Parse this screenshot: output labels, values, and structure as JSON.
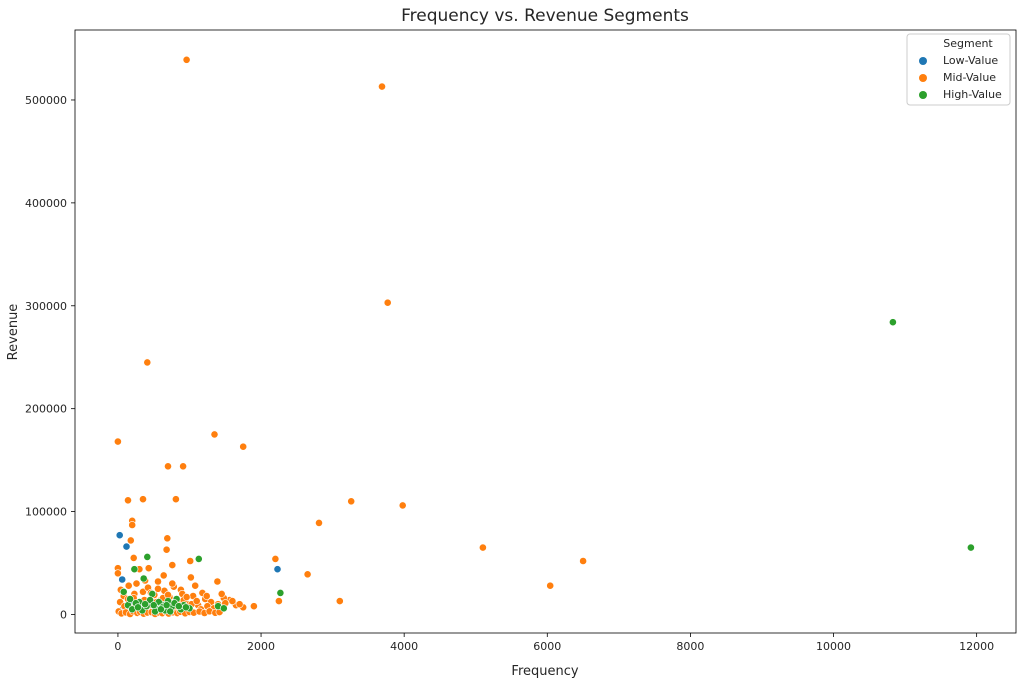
{
  "chart_data": {
    "type": "scatter",
    "title": "Frequency vs. Revenue Segments",
    "xlabel": "Frequency",
    "ylabel": "Revenue",
    "xlim": [
      -600,
      12550
    ],
    "ylim": [
      -18000,
      568000
    ],
    "xticks": [
      0,
      2000,
      4000,
      6000,
      8000,
      10000,
      12000
    ],
    "yticks": [
      0,
      100000,
      200000,
      300000,
      400000,
      500000
    ],
    "grid": false,
    "legend": {
      "title": "Segment",
      "position": "top-right"
    },
    "series": [
      {
        "name": "Low-Value",
        "color": "#1f77b4",
        "points": [
          [
            25,
            77000
          ],
          [
            120,
            66000
          ],
          [
            60,
            34000
          ],
          [
            2230,
            44000
          ],
          [
            70,
            5000
          ],
          [
            160,
            12000
          ],
          [
            240,
            9000
          ],
          [
            330,
            7000
          ],
          [
            480,
            6000
          ],
          [
            130,
            3000
          ]
        ]
      },
      {
        "name": "Mid-Value",
        "color": "#ff7f0e",
        "points": [
          [
            960,
            539000
          ],
          [
            3690,
            513000
          ],
          [
            3770,
            303000
          ],
          [
            410,
            245000
          ],
          [
            0,
            168000
          ],
          [
            1350,
            175000
          ],
          [
            1750,
            163000
          ],
          [
            700,
            144000
          ],
          [
            910,
            144000
          ],
          [
            140,
            111000
          ],
          [
            350,
            112000
          ],
          [
            810,
            112000
          ],
          [
            3260,
            110000
          ],
          [
            3980,
            106000
          ],
          [
            200,
            91000
          ],
          [
            2810,
            89000
          ],
          [
            200,
            87000
          ],
          [
            690,
            74000
          ],
          [
            180,
            72000
          ],
          [
            5100,
            65000
          ],
          [
            680,
            63000
          ],
          [
            6500,
            52000
          ],
          [
            1010,
            52000
          ],
          [
            220,
            55000
          ],
          [
            2200,
            54000
          ],
          [
            0,
            45000
          ],
          [
            0,
            40000
          ],
          [
            2650,
            39000
          ],
          [
            6040,
            28000
          ],
          [
            3100,
            13000
          ],
          [
            2250,
            13000
          ],
          [
            1900,
            8000
          ],
          [
            1750,
            7000
          ],
          [
            430,
            45000
          ],
          [
            760,
            48000
          ],
          [
            300,
            44000
          ],
          [
            640,
            38000
          ],
          [
            1390,
            32000
          ],
          [
            1020,
            36000
          ],
          [
            1080,
            28000
          ],
          [
            880,
            24000
          ],
          [
            1560,
            14000
          ],
          [
            1650,
            9000
          ],
          [
            1480,
            16000
          ],
          [
            1220,
            15000
          ],
          [
            40,
            24000
          ],
          [
            80,
            18000
          ],
          [
            150,
            28000
          ],
          [
            260,
            30000
          ],
          [
            350,
            22000
          ],
          [
            420,
            26000
          ],
          [
            510,
            19000
          ],
          [
            560,
            32000
          ],
          [
            600,
            14000
          ],
          [
            650,
            23000
          ],
          [
            720,
            17000
          ],
          [
            780,
            27000
          ],
          [
            840,
            12000
          ],
          [
            900,
            20000
          ],
          [
            950,
            11000
          ],
          [
            1050,
            18000
          ],
          [
            1120,
            9000
          ],
          [
            1180,
            21000
          ],
          [
            1300,
            12000
          ],
          [
            1400,
            10000
          ],
          [
            1450,
            20000
          ],
          [
            30,
            12000
          ],
          [
            90,
            8000
          ],
          [
            140,
            15000
          ],
          [
            190,
            6000
          ],
          [
            230,
            20000
          ],
          [
            280,
            11000
          ],
          [
            320,
            4000
          ],
          [
            370,
            14000
          ],
          [
            440,
            9000
          ],
          [
            500,
            3000
          ],
          [
            540,
            12000
          ],
          [
            590,
            7000
          ],
          [
            630,
            16000
          ],
          [
            690,
            5000
          ],
          [
            730,
            11000
          ],
          [
            800,
            4000
          ],
          [
            860,
            8000
          ],
          [
            920,
            14000
          ],
          [
            980,
            6000
          ],
          [
            1030,
            10000
          ],
          [
            1100,
            13000
          ],
          [
            1160,
            5000
          ],
          [
            1250,
            8000
          ],
          [
            1340,
            6000
          ],
          [
            10,
            3000
          ],
          [
            50,
            1000
          ],
          [
            110,
            2000
          ],
          [
            170,
            500
          ],
          [
            210,
            3000
          ],
          [
            270,
            1500
          ],
          [
            310,
            2500
          ],
          [
            360,
            800
          ],
          [
            410,
            1800
          ],
          [
            470,
            2200
          ],
          [
            520,
            600
          ],
          [
            570,
            1900
          ],
          [
            620,
            1200
          ],
          [
            670,
            2700
          ],
          [
            710,
            900
          ],
          [
            770,
            2100
          ],
          [
            830,
            1300
          ],
          [
            870,
            2600
          ],
          [
            940,
            1100
          ],
          [
            1000,
            2400
          ],
          [
            1060,
            1700
          ],
          [
            1140,
            2900
          ],
          [
            1210,
            1400
          ],
          [
            1280,
            3100
          ],
          [
            1360,
            1600
          ],
          [
            1420,
            2300
          ],
          [
            220,
            16000
          ],
          [
            460,
            21000
          ],
          [
            700,
            19000
          ],
          [
            1240,
            18000
          ],
          [
            380,
            33000
          ],
          [
            560,
            25000
          ],
          [
            760,
            30000
          ],
          [
            960,
            17000
          ],
          [
            1500,
            11000
          ],
          [
            1600,
            13000
          ],
          [
            1700,
            10000
          ]
        ]
      },
      {
        "name": "High-Value",
        "color": "#2ca02c",
        "points": [
          [
            10830,
            284000
          ],
          [
            11920,
            65000
          ],
          [
            410,
            56000
          ],
          [
            1130,
            54000
          ],
          [
            360,
            35000
          ],
          [
            230,
            44000
          ],
          [
            2270,
            21000
          ],
          [
            1400,
            8000
          ],
          [
            80,
            22000
          ],
          [
            300,
            12000
          ],
          [
            480,
            20000
          ],
          [
            550,
            6000
          ],
          [
            600,
            10000
          ],
          [
            660,
            4000
          ],
          [
            700,
            13000
          ],
          [
            750,
            7000
          ],
          [
            820,
            15000
          ],
          [
            880,
            5000
          ],
          [
            920,
            9000
          ],
          [
            1000,
            6000
          ],
          [
            140,
            9000
          ],
          [
            200,
            5000
          ],
          [
            250,
            11000
          ],
          [
            340,
            4000
          ],
          [
            400,
            8000
          ],
          [
            450,
            14000
          ],
          [
            520,
            3000
          ],
          [
            570,
            12000
          ],
          [
            620,
            7000
          ],
          [
            680,
            9000
          ],
          [
            730,
            3000
          ],
          [
            790,
            11000
          ],
          [
            850,
            8000
          ],
          [
            1480,
            6000
          ],
          [
            170,
            15000
          ],
          [
            280,
            7000
          ],
          [
            380,
            10000
          ],
          [
            500,
            9000
          ],
          [
            600,
            5000
          ],
          [
            950,
            7000
          ]
        ]
      }
    ]
  }
}
